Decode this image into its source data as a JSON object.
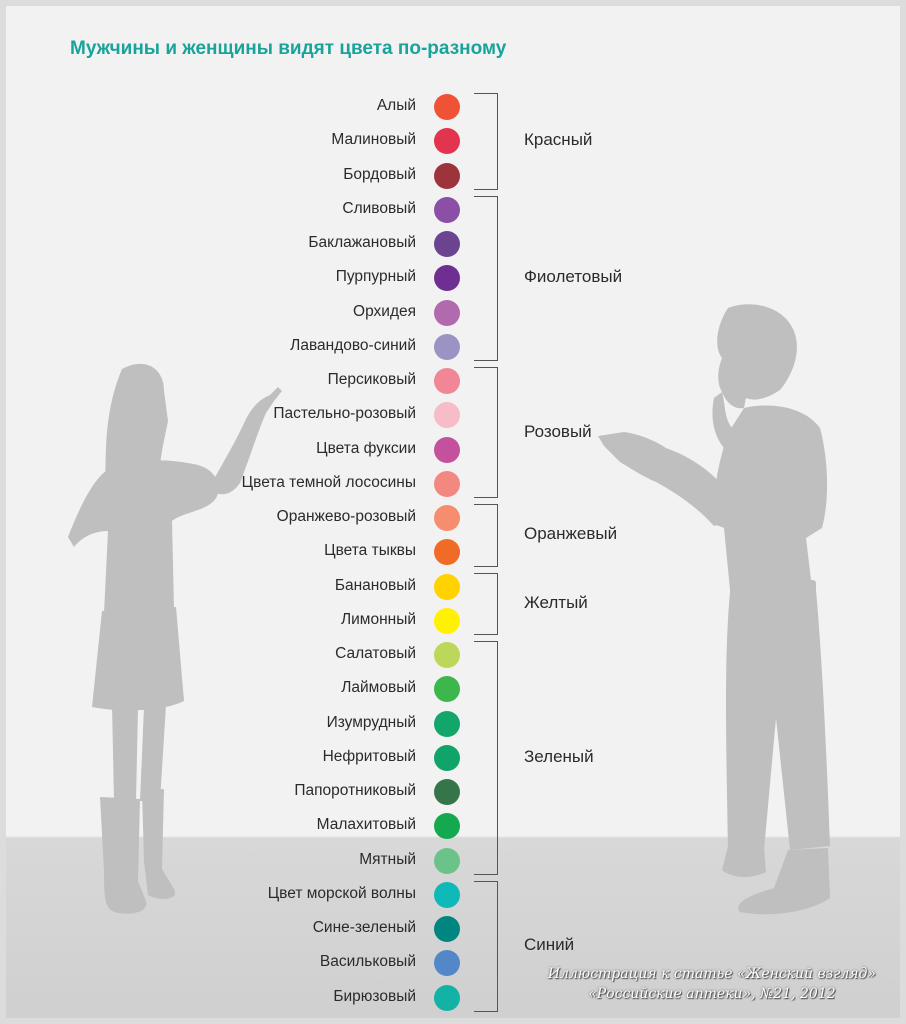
{
  "title": "Мужчины и женщины видят цвета по-разному",
  "colors": [
    {
      "label": "Алый",
      "color": "#f05236"
    },
    {
      "label": "Малиновый",
      "color": "#e2334f"
    },
    {
      "label": "Бордовый",
      "color": "#9d333b"
    },
    {
      "label": "Сливовый",
      "color": "#8c4fa6"
    },
    {
      "label": "Баклажановый",
      "color": "#6b4391"
    },
    {
      "label": "Пурпурный",
      "color": "#6e2e92"
    },
    {
      "label": "Орхидея",
      "color": "#b06aad"
    },
    {
      "label": "Лавандово-синий",
      "color": "#9b93c4"
    },
    {
      "label": "Персиковый",
      "color": "#f08696"
    },
    {
      "label": "Пастельно-розовый",
      "color": "#f6bcc8"
    },
    {
      "label": "Цвета фуксии",
      "color": "#c3519d"
    },
    {
      "label": "Цвета темной лососины",
      "color": "#f28880"
    },
    {
      "label": "Оранжево-розовый",
      "color": "#f58d6e"
    },
    {
      "label": "Цвета тыквы",
      "color": "#f06b25"
    },
    {
      "label": "Банановый",
      "color": "#ffd200"
    },
    {
      "label": "Лимонный",
      "color": "#fff100"
    },
    {
      "label": "Салатовый",
      "color": "#bcd75a"
    },
    {
      "label": "Лаймовый",
      "color": "#3db64c"
    },
    {
      "label": "Изумрудный",
      "color": "#12a66b"
    },
    {
      "label": "Нефритовый",
      "color": "#10a36a"
    },
    {
      "label": "Папоротниковый",
      "color": "#36754a"
    },
    {
      "label": "Малахитовый",
      "color": "#14a94f"
    },
    {
      "label": "Мятный",
      "color": "#6cc38a"
    },
    {
      "label": "Цвет морской волны",
      "color": "#0fb9b8"
    },
    {
      "label": "Сине-зеленый",
      "color": "#008580"
    },
    {
      "label": "Васильковый",
      "color": "#5388c8"
    },
    {
      "label": "Бирюзовый",
      "color": "#12b3a4"
    }
  ],
  "groups": [
    {
      "label": "Красный",
      "from": 0,
      "to": 2
    },
    {
      "label": "Фиолетовый",
      "from": 3,
      "to": 7
    },
    {
      "label": "Розовый",
      "from": 8,
      "to": 11
    },
    {
      "label": "Оранжевый",
      "from": 12,
      "to": 13
    },
    {
      "label": "Желтый",
      "from": 14,
      "to": 15
    },
    {
      "label": "Зеленый",
      "from": 16,
      "to": 22
    },
    {
      "label": "Синий",
      "from": 23,
      "to": 26
    }
  ],
  "caption": {
    "line1": "Иллюстрация к статье «Женский взгляд»",
    "line2": "«Российские аптеки», №21, 2012"
  },
  "figure_color": "#bfbfbf",
  "title_color": "#1aa39a"
}
